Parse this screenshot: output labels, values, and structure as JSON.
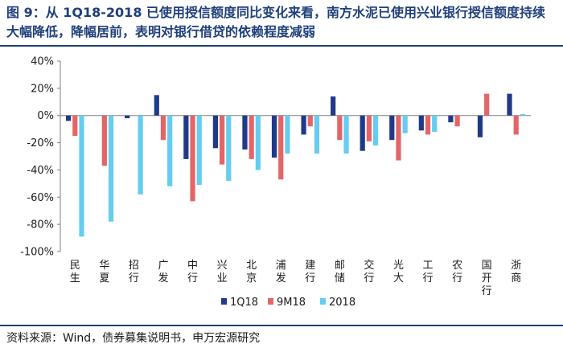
{
  "title": "图 9：从 1Q18-2018 已使用授信额度同比变化来看，南方水泥已使用兴业银行授信额度持续大幅降低，降幅居前，表明对银行借贷的依赖程度减弱",
  "source": "资料来源：Wind，债券募集说明书，申万宏源研究",
  "colors": {
    "title": "#1f3f7a",
    "axis": "#7f7f7f"
  },
  "chart_data": {
    "type": "bar",
    "title": "",
    "xlabel": "",
    "ylabel": "",
    "ylim": [
      -100,
      40
    ],
    "yticks": [
      40,
      20,
      0,
      -20,
      -40,
      -60,
      -80,
      -100
    ],
    "ytick_labels": [
      "40%",
      "20%",
      "0%",
      "-20%",
      "-40%",
      "-60%",
      "-80%",
      "-100%"
    ],
    "grid": false,
    "legend_position": "bottom-center",
    "categories": [
      "民生",
      "华夏",
      "招行",
      "广发",
      "中行",
      "兴业",
      "北京",
      "浦发",
      "建行",
      "邮储",
      "交行",
      "光大",
      "工行",
      "农行",
      "国开行",
      "浙商"
    ],
    "series": [
      {
        "name": "1Q18",
        "color": "#1f3a8a",
        "values": [
          -4,
          0,
          -2,
          15,
          -32,
          -24,
          -25,
          -31,
          -14,
          14,
          -26,
          -18,
          -11,
          -5,
          -16,
          16
        ]
      },
      {
        "name": "9M18",
        "color": "#e46568",
        "values": [
          -15,
          -37,
          0,
          -18,
          -63,
          -36,
          -32,
          -47,
          -8,
          -18,
          -19,
          -33,
          -14,
          -8,
          16,
          -14
        ]
      },
      {
        "name": "2018",
        "color": "#66ccf0",
        "values": [
          -89,
          -78,
          -58,
          -52,
          -51,
          -48,
          -40,
          -28,
          -28,
          -28,
          -22,
          -13,
          -12,
          0,
          0,
          1
        ]
      }
    ]
  }
}
